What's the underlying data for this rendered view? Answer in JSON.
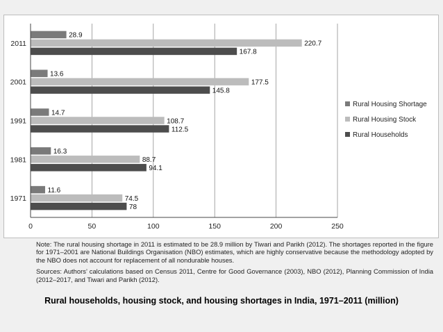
{
  "colors": {
    "shortage": "#7a7a7a",
    "stock": "#bcbcbc",
    "households": "#4d4d4d",
    "axis": "#444444",
    "grid": "#8f8f8f"
  },
  "chart_data": {
    "type": "bar",
    "orientation": "horizontal",
    "title": "",
    "xlabel": "",
    "ylabel": "",
    "categories": [
      "1971",
      "1981",
      "1991",
      "2001",
      "2011"
    ],
    "series": [
      {
        "name": "Rural Housing Shortage",
        "values": [
          11.6,
          16.3,
          14.7,
          13.6,
          28.9
        ]
      },
      {
        "name": "Rural Housing Stock",
        "values": [
          74.5,
          88.7,
          108.7,
          177.5,
          220.7
        ]
      },
      {
        "name": "Rural Households",
        "values": [
          78,
          94.1,
          112.5,
          145.8,
          167.8
        ]
      }
    ],
    "xlim": [
      0,
      250
    ],
    "xticks": [
      0,
      50,
      100,
      150,
      200,
      250
    ],
    "grid": true,
    "legend": "right"
  },
  "notes": {
    "note": "Note: The rural housing shortage in 2011 is estimated to be 28.9 million by Tiwari and Parikh (2012). The shortages reported in the figure for 1971–2001 are National Buildings Organisation (NBO) estimates, which are highly conservative because the methodology adopted by the NBO does not account for replacement of all nondurable houses.",
    "sources": "Sources: Authors’ calculations based on Census 2011, Centre for Good Governance (2003), NBO (2012), Planning Commission of India (2012–2017, and Tiwari and Parikh (2012)."
  },
  "caption": "Rural households, housing stock, and housing shortages in India, 1971–2011 (million)"
}
